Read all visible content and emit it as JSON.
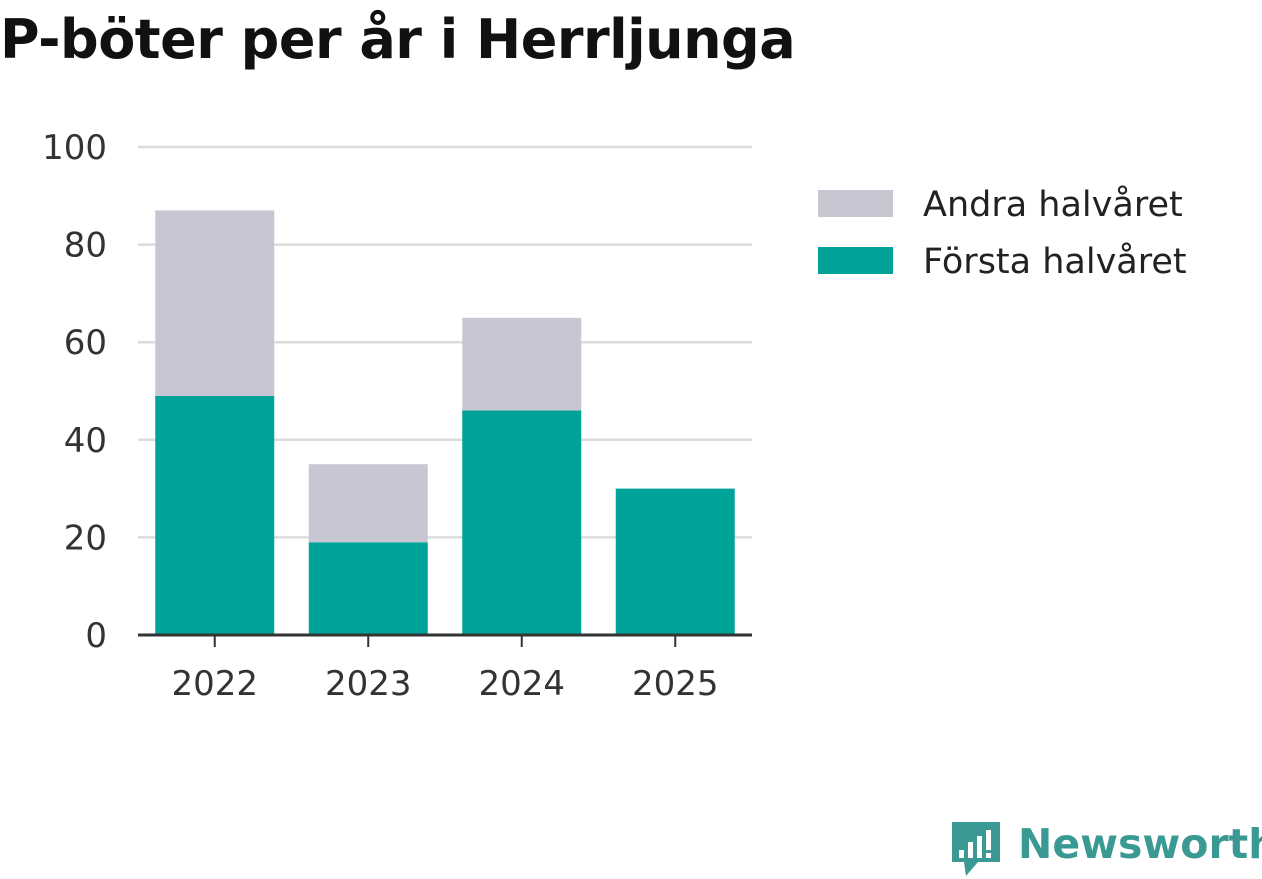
{
  "chart_data": {
    "type": "bar",
    "stacked": true,
    "title": "P-böter per år i Herrljunga",
    "xlabel": "",
    "ylabel": "",
    "categories": [
      "2022",
      "2023",
      "2024",
      "2025"
    ],
    "series": [
      {
        "name": "Första halvåret",
        "values": [
          49,
          19,
          46,
          30
        ],
        "color": "#00a39a"
      },
      {
        "name": "Andra halvåret",
        "values": [
          38,
          16,
          19,
          0
        ],
        "color": "#c8c6d2"
      }
    ],
    "ylim": [
      0,
      100
    ],
    "yticks": [
      0,
      20,
      40,
      60,
      80,
      100
    ],
    "grid": true,
    "legend": "right",
    "legend_order": [
      "Andra halvåret",
      "Första halvåret"
    ]
  },
  "branding": {
    "name": "Newsworthy",
    "color": "#3a9a93"
  }
}
